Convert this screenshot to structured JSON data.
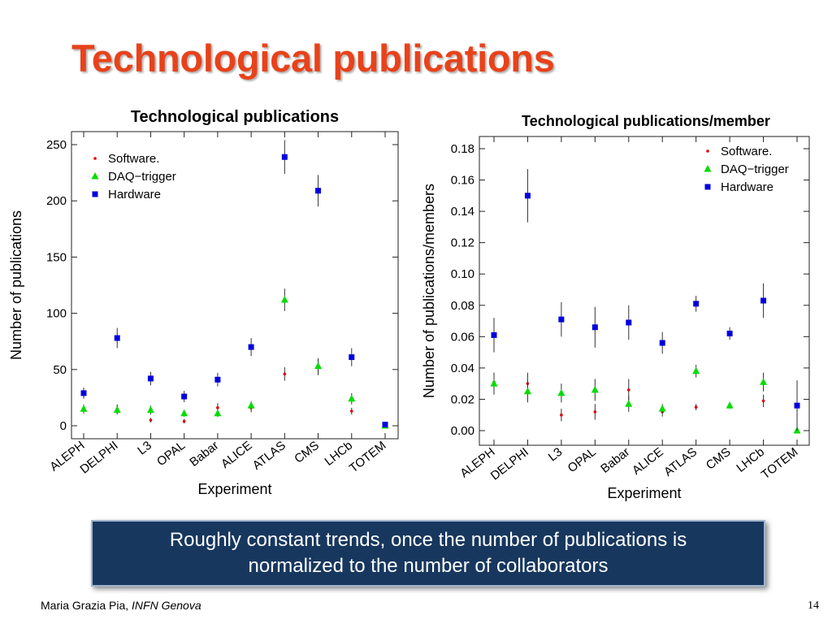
{
  "slide": {
    "title": "Technological publications",
    "callout_line1": "Roughly constant trends, once the number of publications is",
    "callout_line2": "normalized to the number of collaborators",
    "footer_author": "Maria Grazia Pia,",
    "footer_affiliation": "INFN Genova",
    "page_number": "14"
  },
  "colors": {
    "title": "#e8421a",
    "software": "#e00000",
    "daq": "#00dd00",
    "hardware": "#0000dd",
    "callout_bg": "#17375e"
  },
  "chart_data": [
    {
      "type": "scatter",
      "title": "Technological publications",
      "xlabel": "Experiment",
      "ylabel": "Number of publications",
      "categories": [
        "ALEPH",
        "DELPHI",
        "L3",
        "OPAL",
        "Babar",
        "ALICE",
        "ATLAS",
        "CMS",
        "LHCb",
        "TOTEM"
      ],
      "ylim": [
        0,
        260
      ],
      "yticks": [
        0,
        50,
        100,
        150,
        200,
        250
      ],
      "ytick_labels": [
        "0",
        "50",
        "100",
        "150",
        "200",
        "250"
      ],
      "legend_position": "top-left",
      "series": [
        {
          "name": "Software.",
          "marker": "dot",
          "color": "#e00000",
          "values": [
            14,
            15,
            5,
            4,
            16,
            16,
            46,
            52,
            13,
            0
          ],
          "err": [
            3,
            4,
            2,
            2,
            4,
            4,
            6,
            7,
            3,
            0
          ]
        },
        {
          "name": "DAQ−trigger",
          "marker": "triangle",
          "color": "#00dd00",
          "values": [
            15,
            14,
            14,
            11,
            11,
            18,
            112,
            53,
            24,
            0
          ],
          "err": [
            4,
            4,
            4,
            3,
            3,
            4,
            10,
            7,
            5,
            0
          ]
        },
        {
          "name": "Hardware",
          "marker": "square",
          "color": "#0000dd",
          "values": [
            29,
            78,
            42,
            26,
            41,
            70,
            239,
            209,
            61,
            1
          ],
          "err": [
            5,
            9,
            6,
            5,
            6,
            8,
            15,
            14,
            8,
            1
          ]
        }
      ]
    },
    {
      "type": "scatter",
      "title": "Technological publications/member",
      "xlabel": "Experiment",
      "ylabel": "Number of publications/members",
      "categories": [
        "ALEPH",
        "DELPHI",
        "L3",
        "OPAL",
        "Babar",
        "ALICE",
        "ATLAS",
        "CMS",
        "LHCb",
        "TOTEM"
      ],
      "ylim": [
        0,
        0.184
      ],
      "yticks": [
        0,
        0.02,
        0.04,
        0.06,
        0.08,
        0.1,
        0.12,
        0.14,
        0.16,
        0.18
      ],
      "ytick_labels": [
        "0.00",
        "0.02",
        "0.04",
        "0.06",
        "0.08",
        "0.10",
        "0.12",
        "0.14",
        "0.16",
        "0.18"
      ],
      "legend_position": "top-right",
      "series": [
        {
          "name": "Software.",
          "marker": "dot",
          "color": "#e00000",
          "values": [
            0.031,
            0.03,
            0.01,
            0.012,
            0.026,
            0.012,
            0.015,
            0.016,
            0.019,
            0.016
          ],
          "err": [
            0.006,
            0.007,
            0.004,
            0.005,
            0.007,
            0.003,
            0.002,
            0.002,
            0.004,
            0.016
          ]
        },
        {
          "name": "DAQ−trigger",
          "marker": "triangle",
          "color": "#00dd00",
          "values": [
            0.03,
            0.025,
            0.024,
            0.026,
            0.017,
            0.014,
            0.038,
            0.016,
            0.031,
            0.0
          ],
          "err": [
            0.007,
            0.007,
            0.006,
            0.007,
            0.005,
            0.003,
            0.004,
            0.002,
            0.006,
            0.0
          ]
        },
        {
          "name": "Hardware",
          "marker": "square",
          "color": "#0000dd",
          "values": [
            0.061,
            0.15,
            0.071,
            0.066,
            0.069,
            0.056,
            0.081,
            0.062,
            0.083,
            0.016
          ],
          "err": [
            0.011,
            0.017,
            0.011,
            0.013,
            0.011,
            0.007,
            0.005,
            0.004,
            0.011,
            0.016
          ]
        }
      ]
    }
  ]
}
